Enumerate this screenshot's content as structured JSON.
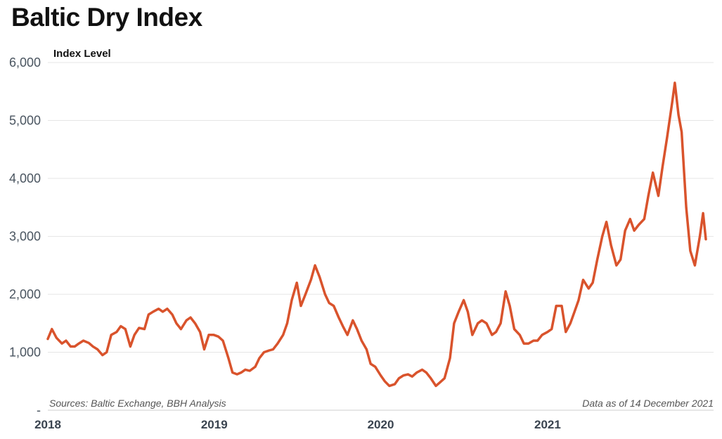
{
  "chart_data": {
    "type": "line",
    "title": "Baltic Dry Index",
    "ylabel": "Index Level",
    "xlabel": "",
    "ylim": [
      0,
      6000
    ],
    "xlim": [
      "2018-01-01",
      "2021-12-31"
    ],
    "yticks": [
      "-",
      "1,000",
      "2,000",
      "3,000",
      "4,000",
      "5,000",
      "6,000"
    ],
    "xticks": [
      "2018",
      "2019",
      "2020",
      "2021"
    ],
    "grid": true,
    "line_color": "#d9532c",
    "source_note": "Sources: Baltic Exchange, BBH Analysis",
    "data_note": "Data as of 14 December 2021",
    "series": [
      {
        "points": [
          [
            "2018-01-01",
            1230
          ],
          [
            "2018-01-10",
            1400
          ],
          [
            "2018-01-20",
            1250
          ],
          [
            "2018-02-01",
            1150
          ],
          [
            "2018-02-10",
            1200
          ],
          [
            "2018-02-20",
            1100
          ],
          [
            "2018-03-01",
            1100
          ],
          [
            "2018-03-10",
            1150
          ],
          [
            "2018-03-20",
            1200
          ],
          [
            "2018-04-01",
            1160
          ],
          [
            "2018-04-10",
            1100
          ],
          [
            "2018-04-20",
            1050
          ],
          [
            "2018-05-01",
            950
          ],
          [
            "2018-05-10",
            1000
          ],
          [
            "2018-05-20",
            1300
          ],
          [
            "2018-06-01",
            1350
          ],
          [
            "2018-06-10",
            1450
          ],
          [
            "2018-06-20",
            1400
          ],
          [
            "2018-07-01",
            1100
          ],
          [
            "2018-07-10",
            1300
          ],
          [
            "2018-07-20",
            1420
          ],
          [
            "2018-08-01",
            1400
          ],
          [
            "2018-08-10",
            1650
          ],
          [
            "2018-08-20",
            1700
          ],
          [
            "2018-09-01",
            1750
          ],
          [
            "2018-09-10",
            1700
          ],
          [
            "2018-09-20",
            1750
          ],
          [
            "2018-10-01",
            1650
          ],
          [
            "2018-10-10",
            1500
          ],
          [
            "2018-10-20",
            1400
          ],
          [
            "2018-11-01",
            1550
          ],
          [
            "2018-11-10",
            1600
          ],
          [
            "2018-11-20",
            1500
          ],
          [
            "2018-12-01",
            1350
          ],
          [
            "2018-12-10",
            1050
          ],
          [
            "2018-12-20",
            1300
          ],
          [
            "2018-12-31",
            1300
          ],
          [
            "2019-01-10",
            1270
          ],
          [
            "2019-01-20",
            1200
          ],
          [
            "2019-02-01",
            900
          ],
          [
            "2019-02-10",
            650
          ],
          [
            "2019-02-20",
            620
          ],
          [
            "2019-03-01",
            650
          ],
          [
            "2019-03-10",
            700
          ],
          [
            "2019-03-20",
            680
          ],
          [
            "2019-04-01",
            750
          ],
          [
            "2019-04-10",
            900
          ],
          [
            "2019-04-20",
            1000
          ],
          [
            "2019-05-01",
            1030
          ],
          [
            "2019-05-10",
            1050
          ],
          [
            "2019-05-20",
            1150
          ],
          [
            "2019-06-01",
            1300
          ],
          [
            "2019-06-10",
            1500
          ],
          [
            "2019-06-20",
            1900
          ],
          [
            "2019-07-01",
            2200
          ],
          [
            "2019-07-10",
            1800
          ],
          [
            "2019-07-20",
            2000
          ],
          [
            "2019-08-01",
            2250
          ],
          [
            "2019-08-10",
            2500
          ],
          [
            "2019-08-20",
            2300
          ],
          [
            "2019-09-01",
            2000
          ],
          [
            "2019-09-10",
            1850
          ],
          [
            "2019-09-20",
            1800
          ],
          [
            "2019-10-01",
            1600
          ],
          [
            "2019-10-10",
            1450
          ],
          [
            "2019-10-20",
            1300
          ],
          [
            "2019-11-01",
            1550
          ],
          [
            "2019-11-10",
            1400
          ],
          [
            "2019-11-20",
            1200
          ],
          [
            "2019-12-01",
            1050
          ],
          [
            "2019-12-10",
            800
          ],
          [
            "2019-12-20",
            750
          ],
          [
            "2020-01-01",
            600
          ],
          [
            "2020-01-10",
            500
          ],
          [
            "2020-01-20",
            420
          ],
          [
            "2020-02-01",
            450
          ],
          [
            "2020-02-10",
            550
          ],
          [
            "2020-02-20",
            600
          ],
          [
            "2020-03-01",
            620
          ],
          [
            "2020-03-10",
            580
          ],
          [
            "2020-03-20",
            650
          ],
          [
            "2020-04-01",
            700
          ],
          [
            "2020-04-10",
            650
          ],
          [
            "2020-04-20",
            550
          ],
          [
            "2020-05-01",
            420
          ],
          [
            "2020-05-10",
            480
          ],
          [
            "2020-05-20",
            550
          ],
          [
            "2020-06-01",
            900
          ],
          [
            "2020-06-10",
            1500
          ],
          [
            "2020-06-20",
            1700
          ],
          [
            "2020-07-01",
            1900
          ],
          [
            "2020-07-10",
            1700
          ],
          [
            "2020-07-20",
            1300
          ],
          [
            "2020-08-01",
            1500
          ],
          [
            "2020-08-10",
            1550
          ],
          [
            "2020-08-20",
            1500
          ],
          [
            "2020-09-01",
            1300
          ],
          [
            "2020-09-10",
            1350
          ],
          [
            "2020-09-20",
            1500
          ],
          [
            "2020-10-01",
            2050
          ],
          [
            "2020-10-10",
            1800
          ],
          [
            "2020-10-20",
            1400
          ],
          [
            "2020-11-01",
            1300
          ],
          [
            "2020-11-10",
            1150
          ],
          [
            "2020-11-20",
            1150
          ],
          [
            "2020-12-01",
            1200
          ],
          [
            "2020-12-10",
            1200
          ],
          [
            "2020-12-20",
            1300
          ],
          [
            "2021-01-01",
            1350
          ],
          [
            "2021-01-10",
            1400
          ],
          [
            "2021-01-20",
            1800
          ],
          [
            "2021-02-01",
            1800
          ],
          [
            "2021-02-10",
            1350
          ],
          [
            "2021-02-20",
            1500
          ],
          [
            "2021-03-01",
            1700
          ],
          [
            "2021-03-10",
            1900
          ],
          [
            "2021-03-20",
            2250
          ],
          [
            "2021-04-01",
            2100
          ],
          [
            "2021-04-10",
            2200
          ],
          [
            "2021-04-20",
            2600
          ],
          [
            "2021-05-01",
            3000
          ],
          [
            "2021-05-10",
            3250
          ],
          [
            "2021-05-20",
            2850
          ],
          [
            "2021-06-01",
            2500
          ],
          [
            "2021-06-10",
            2600
          ],
          [
            "2021-06-20",
            3100
          ],
          [
            "2021-07-01",
            3300
          ],
          [
            "2021-07-10",
            3100
          ],
          [
            "2021-07-20",
            3200
          ],
          [
            "2021-08-01",
            3300
          ],
          [
            "2021-08-10",
            3700
          ],
          [
            "2021-08-20",
            4100
          ],
          [
            "2021-09-01",
            3700
          ],
          [
            "2021-09-10",
            4200
          ],
          [
            "2021-09-20",
            4700
          ],
          [
            "2021-10-01",
            5300
          ],
          [
            "2021-10-07",
            5650
          ],
          [
            "2021-10-15",
            5100
          ],
          [
            "2021-10-22",
            4800
          ],
          [
            "2021-11-01",
            3500
          ],
          [
            "2021-11-10",
            2750
          ],
          [
            "2021-11-20",
            2500
          ],
          [
            "2021-12-01",
            3000
          ],
          [
            "2021-12-08",
            3400
          ],
          [
            "2021-12-14",
            2950
          ]
        ]
      }
    ]
  }
}
